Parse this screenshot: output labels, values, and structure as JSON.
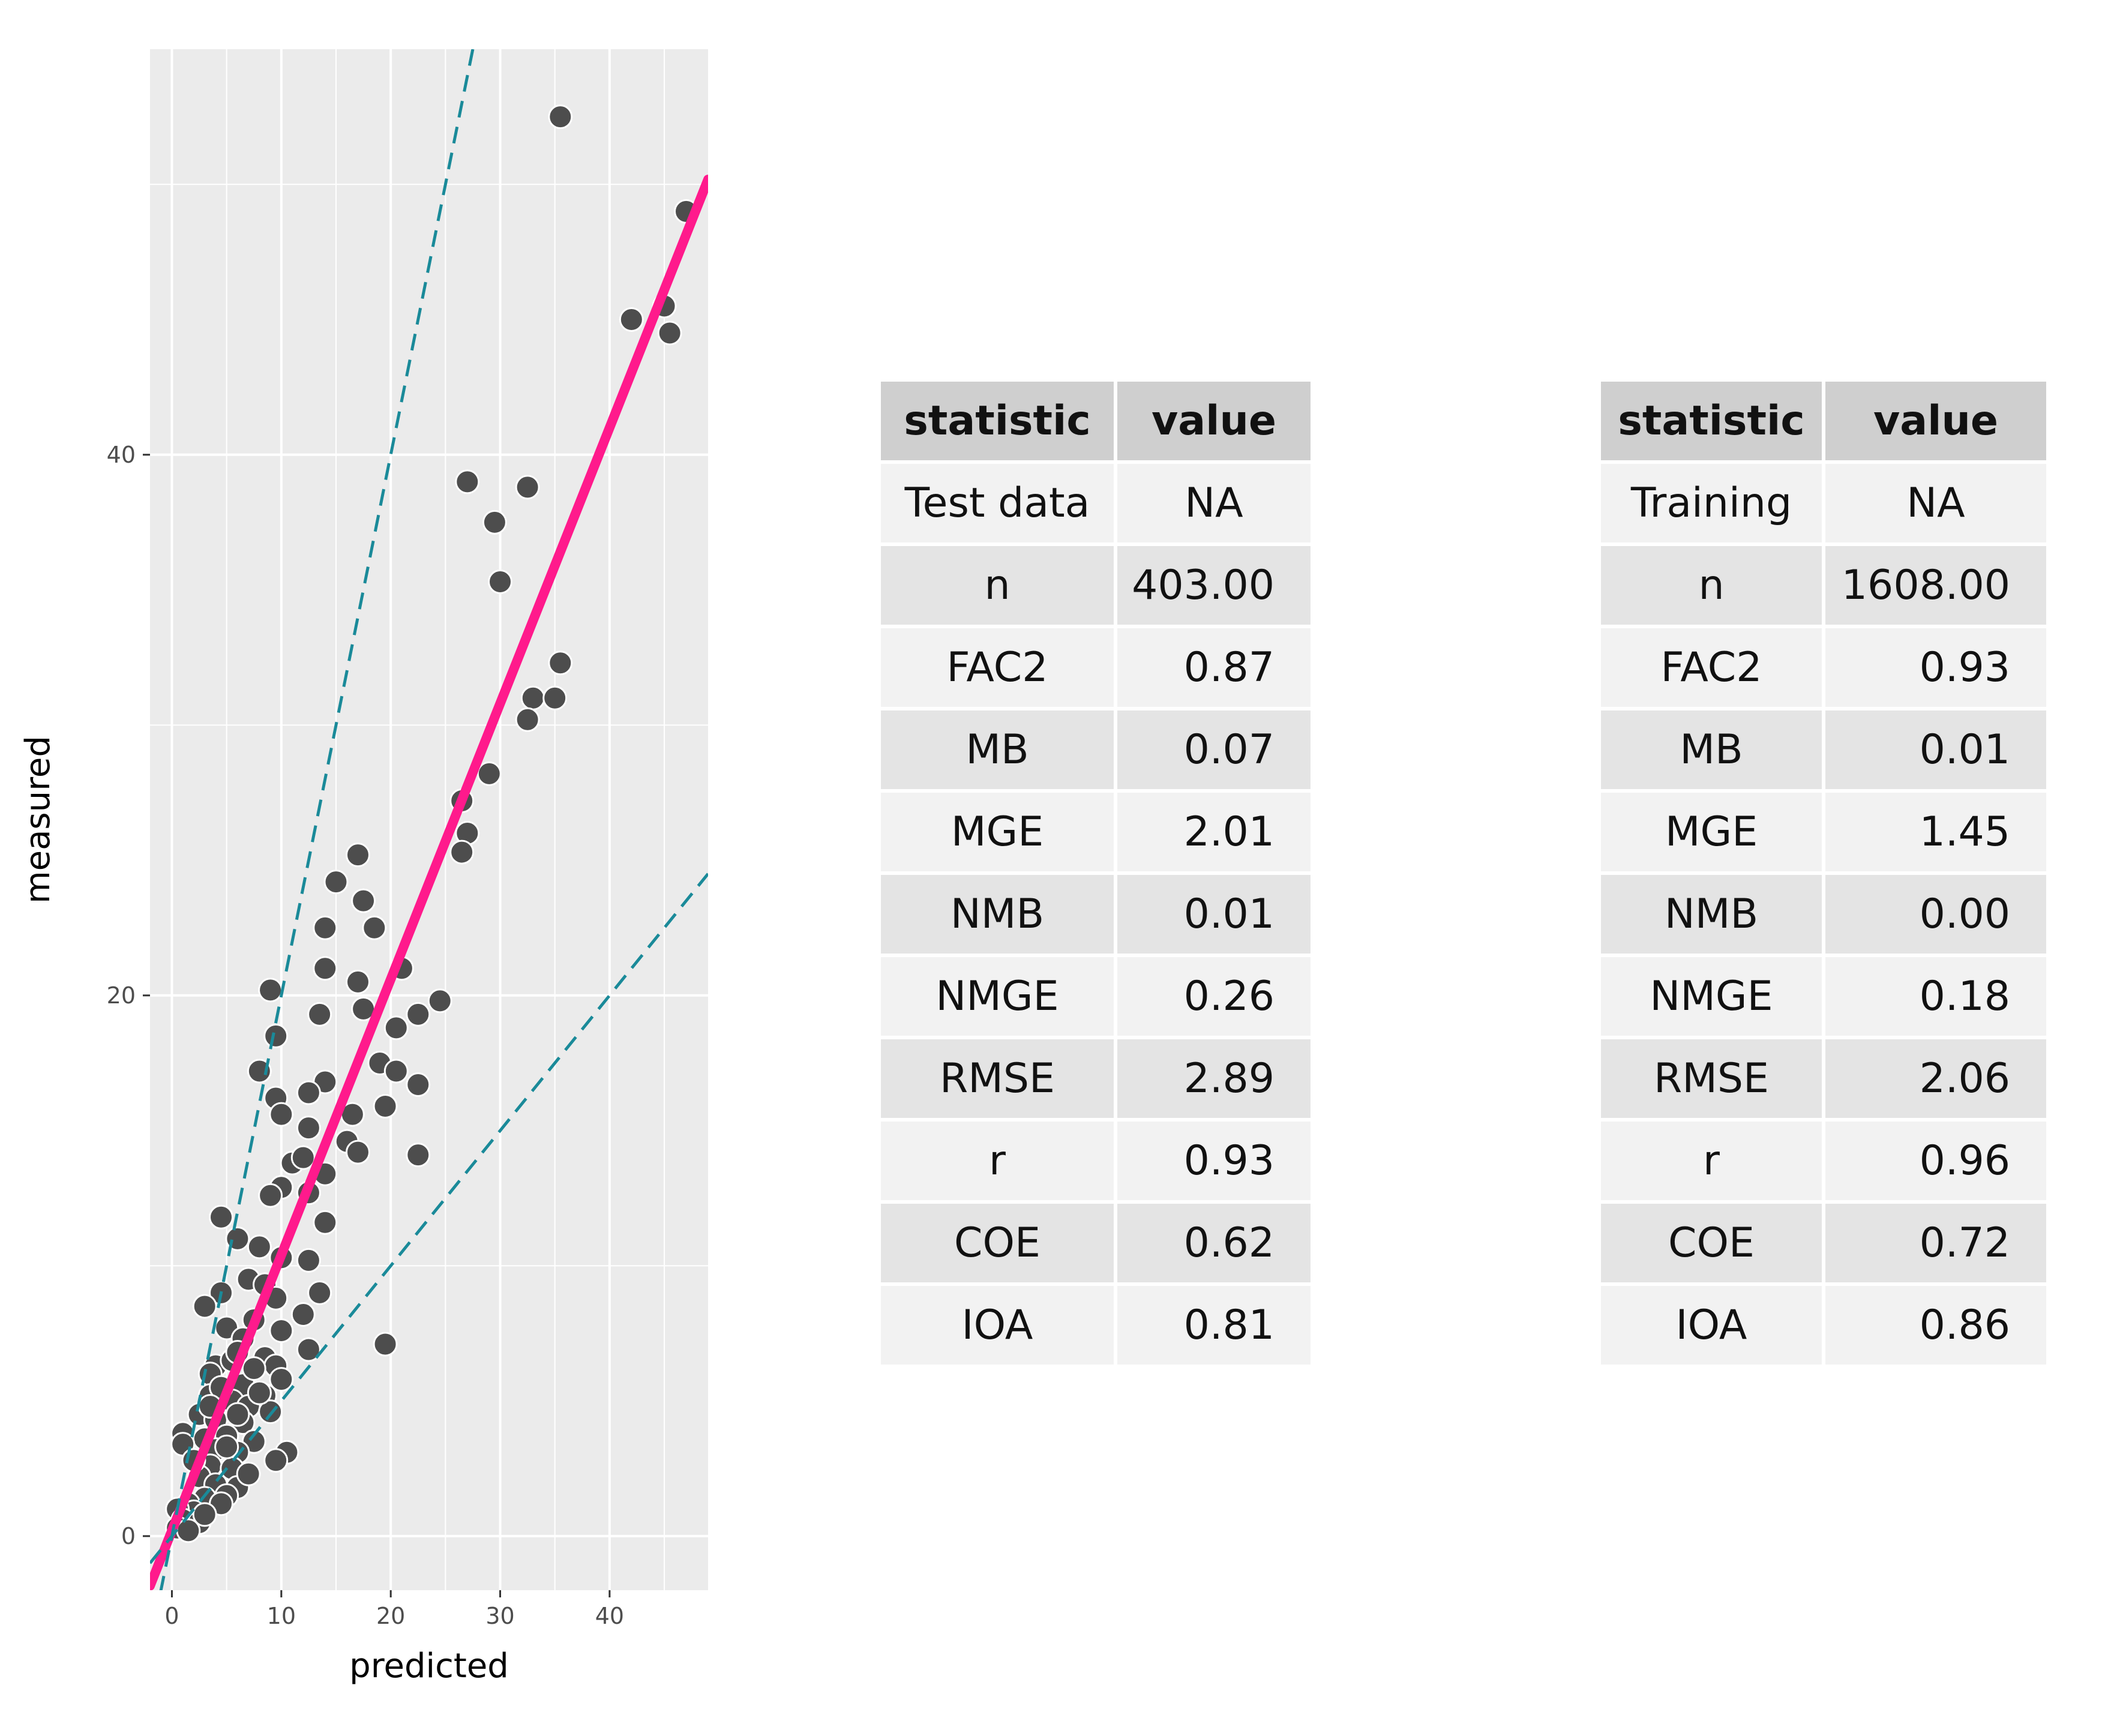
{
  "chart_data": {
    "type": "scatter",
    "xlabel": "predicted",
    "ylabel": "measured",
    "xlim": [
      -2,
      49
    ],
    "ylim": [
      -2,
      55
    ],
    "x_ticks": [
      0,
      10,
      20,
      30,
      40
    ],
    "y_ticks": [
      0,
      20,
      40
    ],
    "grid": true,
    "reference_lines": [
      {
        "name": "regression fit",
        "slope": 1.02,
        "intercept": 0.2,
        "color": "#ff1a8c",
        "style": "solid"
      },
      {
        "name": "factor-of-2 upper",
        "slope": 2.0,
        "intercept": 0,
        "color": "#1a8a99",
        "style": "dashed"
      },
      {
        "name": "factor-of-2 lower",
        "slope": 0.5,
        "intercept": 0,
        "color": "#1a8a99",
        "style": "dashed"
      }
    ],
    "points": [
      [
        35.5,
        52.5
      ],
      [
        47,
        49
      ],
      [
        42,
        45
      ],
      [
        45,
        45.5
      ],
      [
        45.5,
        44.5
      ],
      [
        27,
        39
      ],
      [
        32.5,
        38.8
      ],
      [
        29.5,
        37.5
      ],
      [
        30,
        35.3
      ],
      [
        35.5,
        32.3
      ],
      [
        33,
        31
      ],
      [
        35,
        31
      ],
      [
        32.5,
        30.2
      ],
      [
        29,
        28.2
      ],
      [
        26.5,
        27.2
      ],
      [
        27,
        26
      ],
      [
        26.5,
        25.3
      ],
      [
        17,
        25.2
      ],
      [
        15,
        24.2
      ],
      [
        17.5,
        23.5
      ],
      [
        14,
        22.5
      ],
      [
        18.5,
        22.5
      ],
      [
        14,
        21
      ],
      [
        21,
        21
      ],
      [
        17,
        20.5
      ],
      [
        9,
        20.2
      ],
      [
        24.5,
        19.8
      ],
      [
        22.5,
        19.3
      ],
      [
        17.5,
        19.5
      ],
      [
        13.5,
        19.3
      ],
      [
        20.5,
        18.8
      ],
      [
        9.5,
        18.5
      ],
      [
        19,
        17.5
      ],
      [
        20.5,
        17.2
      ],
      [
        8,
        17.2
      ],
      [
        22.5,
        16.7
      ],
      [
        14,
        16.8
      ],
      [
        9.5,
        16.2
      ],
      [
        12.5,
        16.4
      ],
      [
        19.5,
        15.9
      ],
      [
        10,
        15.6
      ],
      [
        16.5,
        15.6
      ],
      [
        12.5,
        15.1
      ],
      [
        16,
        14.6
      ],
      [
        17,
        14.2
      ],
      [
        22.5,
        14.1
      ],
      [
        11,
        13.8
      ],
      [
        12,
        14
      ],
      [
        14,
        13.4
      ],
      [
        10,
        12.9
      ],
      [
        9,
        12.6
      ],
      [
        12.5,
        12.7
      ],
      [
        4.5,
        11.8
      ],
      [
        14,
        11.6
      ],
      [
        6,
        11
      ],
      [
        8,
        10.7
      ],
      [
        12.5,
        10.2
      ],
      [
        10,
        10.3
      ],
      [
        7,
        9.5
      ],
      [
        13.5,
        9
      ],
      [
        4.5,
        9
      ],
      [
        8.5,
        9.3
      ],
      [
        3,
        8.5
      ],
      [
        9.5,
        8.8
      ],
      [
        12,
        8.2
      ],
      [
        7.5,
        8
      ],
      [
        5,
        7.7
      ],
      [
        10,
        7.6
      ],
      [
        6.5,
        7.3
      ],
      [
        19.5,
        7.1
      ],
      [
        12.5,
        6.9
      ],
      [
        8.5,
        6.6
      ],
      [
        4,
        6.3
      ],
      [
        9.5,
        6.3
      ],
      [
        3.5,
        6
      ],
      [
        10,
        5.8
      ],
      [
        6.5,
        5.6
      ],
      [
        3.5,
        5.2
      ],
      [
        8.5,
        5.2
      ],
      [
        5.5,
        5
      ],
      [
        7,
        4.8
      ],
      [
        2.5,
        4.5
      ],
      [
        9,
        4.6
      ],
      [
        4,
        4.3
      ],
      [
        6.5,
        4.2
      ],
      [
        1,
        3.8
      ],
      [
        3,
        3.6
      ],
      [
        5,
        3.7
      ],
      [
        7.5,
        3.5
      ],
      [
        1,
        3.4
      ],
      [
        4,
        3.2
      ],
      [
        6,
        3.1
      ],
      [
        10.5,
        3.1
      ],
      [
        9.5,
        2.8
      ],
      [
        3.5,
        2.6
      ],
      [
        5.5,
        2.5
      ],
      [
        2.5,
        2.2
      ],
      [
        4,
        1.9
      ],
      [
        6,
        1.8
      ],
      [
        5,
        1.5
      ],
      [
        3,
        1.4
      ],
      [
        1.5,
        1.2
      ],
      [
        4.5,
        1.2
      ],
      [
        2,
        0.9
      ],
      [
        0.5,
        1
      ],
      [
        1,
        0.6
      ],
      [
        2.5,
        0.5
      ],
      [
        3,
        0.8
      ],
      [
        0.5,
        0.3
      ],
      [
        1.5,
        0.2
      ],
      [
        5.5,
        6.5
      ],
      [
        4.5,
        5.5
      ],
      [
        6,
        6.8
      ],
      [
        7.5,
        6.2
      ],
      [
        8,
        5.3
      ],
      [
        6,
        4.5
      ],
      [
        5,
        3.3
      ],
      [
        7,
        2.3
      ],
      [
        3.5,
        4.8
      ],
      [
        2,
        2.8
      ]
    ]
  },
  "tables": [
    {
      "headers": [
        "statistic",
        "value"
      ],
      "rows": [
        [
          "Test data",
          "NA"
        ],
        [
          "n",
          "403.00"
        ],
        [
          "FAC2",
          "0.87"
        ],
        [
          "MB",
          "0.07"
        ],
        [
          "MGE",
          "2.01"
        ],
        [
          "NMB",
          "0.01"
        ],
        [
          "NMGE",
          "0.26"
        ],
        [
          "RMSE",
          "2.89"
        ],
        [
          "r",
          "0.93"
        ],
        [
          "COE",
          "0.62"
        ],
        [
          "IOA",
          "0.81"
        ]
      ]
    },
    {
      "headers": [
        "statistic",
        "value"
      ],
      "rows": [
        [
          "Training",
          "NA"
        ],
        [
          "n",
          "1608.00"
        ],
        [
          "FAC2",
          "0.93"
        ],
        [
          "MB",
          "0.01"
        ],
        [
          "MGE",
          "1.45"
        ],
        [
          "NMB",
          "0.00"
        ],
        [
          "NMGE",
          "0.18"
        ],
        [
          "RMSE",
          "2.06"
        ],
        [
          "r",
          "0.96"
        ],
        [
          "COE",
          "0.72"
        ],
        [
          "IOA",
          "0.86"
        ]
      ]
    }
  ],
  "colors": {
    "panel_bg": "#ebebeb",
    "grid": "#ffffff",
    "point_fill": "#4d4d4d",
    "point_stroke": "#ffffff"
  }
}
